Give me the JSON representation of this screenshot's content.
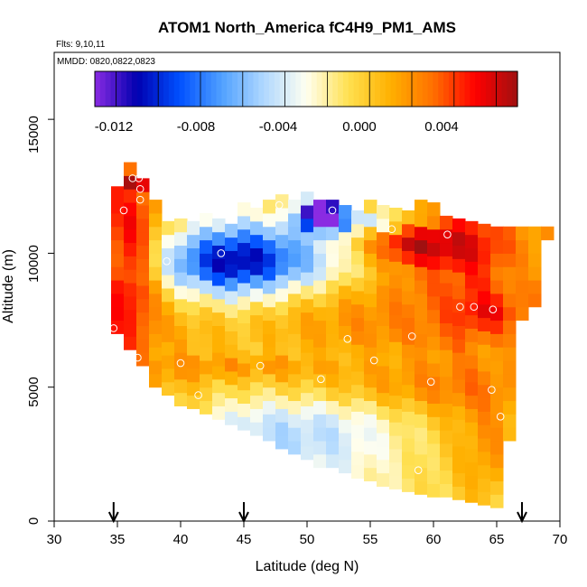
{
  "chart_data": {
    "type": "heatmap",
    "title": "ATOM1 North_America fC4H9_PM1_AMS",
    "flights_label": "Flts: 9,10,11",
    "dates_label": "MMDD: 0820,0822,0823",
    "xlabel": "Latitude (deg N)",
    "ylabel": "Altitude (m)",
    "xlim": [
      30,
      70
    ],
    "ylim": [
      0,
      17500
    ],
    "x_ticks": [
      "30",
      "35",
      "40",
      "45",
      "50",
      "55",
      "60",
      "65",
      "70"
    ],
    "y_ticks": [
      "0",
      "5000",
      "10000",
      "15000"
    ],
    "colorbar": {
      "range": [
        -0.013,
        0.007
      ],
      "tick_labels": [
        "-0.012",
        "-0.008",
        "-0.004",
        "0.000",
        "0.004"
      ],
      "colors": [
        "#8a2be2",
        "#0000b0",
        "#0050ff",
        "#50a0ff",
        "#b0d8ff",
        "#fffff0",
        "#ffe050",
        "#ffb000",
        "#ff7000",
        "#ff0000",
        "#a01010"
      ]
    },
    "flight_markers_lat": [
      34.7,
      45.0,
      67.0
    ],
    "columns": [
      {
        "lat": 35.0,
        "bottom": 7000,
        "top": 12200,
        "bias": 0.003
      },
      {
        "lat": 36.0,
        "bottom": 6400,
        "top": 13000,
        "bias": 0.0022
      },
      {
        "lat": 37.0,
        "bottom": 5800,
        "top": 12400,
        "bias": 0.0016
      },
      {
        "lat": 38.0,
        "bottom": 5000,
        "top": 11600,
        "bias": 0.001
      },
      {
        "lat": 39.0,
        "bottom": 4700,
        "top": 11000,
        "bias": 0.0006
      },
      {
        "lat": 40.0,
        "bottom": 4300,
        "top": 11000,
        "bias": 0.0004
      },
      {
        "lat": 41.0,
        "bottom": 4200,
        "top": 11000,
        "bias": 0.0002
      },
      {
        "lat": 42.0,
        "bottom": 4000,
        "top": 11400,
        "bias": 0.0
      },
      {
        "lat": 43.0,
        "bottom": 3800,
        "top": 11000,
        "bias": -0.0003
      },
      {
        "lat": 44.0,
        "bottom": 3600,
        "top": 11000,
        "bias": -0.0005
      },
      {
        "lat": 45.0,
        "bottom": 3400,
        "top": 11800,
        "bias": -0.0006
      },
      {
        "lat": 46.0,
        "bottom": 3200,
        "top": 11500,
        "bias": -0.0006
      },
      {
        "lat": 47.0,
        "bottom": 3000,
        "top": 12000,
        "bias": -0.0005
      },
      {
        "lat": 48.0,
        "bottom": 2700,
        "top": 11800,
        "bias": -0.0004
      },
      {
        "lat": 49.0,
        "bottom": 2500,
        "top": 12000,
        "bias": -0.0003
      },
      {
        "lat": 50.0,
        "bottom": 2300,
        "top": 12000,
        "bias": -0.0002
      },
      {
        "lat": 51.0,
        "bottom": 2000,
        "top": 12000,
        "bias": -0.0001
      },
      {
        "lat": 52.0,
        "bottom": 2000,
        "top": 11800,
        "bias": 0.0
      },
      {
        "lat": 53.0,
        "bottom": 1800,
        "top": 11600,
        "bias": 0.0002
      },
      {
        "lat": 54.0,
        "bottom": 1600,
        "top": 11600,
        "bias": 0.0004
      },
      {
        "lat": 55.0,
        "bottom": 1500,
        "top": 11600,
        "bias": 0.0006
      },
      {
        "lat": 56.0,
        "bottom": 1300,
        "top": 11600,
        "bias": 0.0008
      },
      {
        "lat": 57.0,
        "bottom": 1200,
        "top": 11600,
        "bias": 0.001
      },
      {
        "lat": 58.0,
        "bottom": 1100,
        "top": 11600,
        "bias": 0.0012
      },
      {
        "lat": 59.0,
        "bottom": 1000,
        "top": 11600,
        "bias": 0.0014
      },
      {
        "lat": 60.0,
        "bottom": 900,
        "top": 11600,
        "bias": 0.0016
      },
      {
        "lat": 61.0,
        "bottom": 900,
        "top": 11000,
        "bias": 0.0018
      },
      {
        "lat": 62.0,
        "bottom": 800,
        "top": 11000,
        "bias": 0.002
      },
      {
        "lat": 63.0,
        "bottom": 700,
        "top": 11000,
        "bias": 0.002
      },
      {
        "lat": 64.0,
        "bottom": 600,
        "top": 11000,
        "bias": 0.0018
      },
      {
        "lat": 65.0,
        "bottom": 500,
        "top": 11000,
        "bias": 0.0015
      },
      {
        "lat": 66.0,
        "bottom": 3000,
        "top": 11000,
        "bias": 0.0012
      },
      {
        "lat": 67.0,
        "bottom": 7500,
        "top": 11000,
        "bias": 0.001
      },
      {
        "lat": 68.0,
        "bottom": 8000,
        "top": 11000,
        "bias": 0.0012
      },
      {
        "lat": 69.0,
        "bottom": 10500,
        "top": 11000,
        "bias": 0.0014
      }
    ],
    "features": [
      {
        "lat": 45.5,
        "alt": 9800,
        "sx": 5,
        "sy": 1000,
        "v": -0.0085
      },
      {
        "lat": 42.5,
        "alt": 9500,
        "sx": 3,
        "sy": 900,
        "v": -0.003
      },
      {
        "lat": 50.5,
        "alt": 11500,
        "sx": 0.8,
        "sy": 400,
        "v": -0.012
      },
      {
        "lat": 52.0,
        "alt": 11500,
        "sx": 0.8,
        "sy": 400,
        "v": -0.01
      },
      {
        "lat": 55.0,
        "alt": 11200,
        "sx": 3,
        "sy": 300,
        "v": -0.0055
      },
      {
        "lat": 58.0,
        "alt": 10400,
        "sx": 2.5,
        "sy": 600,
        "v": 0.0045
      },
      {
        "lat": 63.0,
        "alt": 10200,
        "sx": 3,
        "sy": 1000,
        "v": 0.003
      },
      {
        "lat": 36.5,
        "alt": 10000,
        "sx": 1.2,
        "sy": 2000,
        "v": 0.004
      },
      {
        "lat": 36.5,
        "alt": 12700,
        "sx": 0.5,
        "sy": 200,
        "v": 0.006
      },
      {
        "lat": 52.0,
        "alt": 7600,
        "sx": 6,
        "sy": 900,
        "v": 0.0012
      },
      {
        "lat": 53.0,
        "alt": 5000,
        "sx": 9,
        "sy": 600,
        "v": 0.0018
      },
      {
        "lat": 45.0,
        "alt": 5800,
        "sx": 5,
        "sy": 350,
        "v": 0.0024
      },
      {
        "lat": 50.0,
        "alt": 3500,
        "sx": 7,
        "sy": 1300,
        "v": -0.0038
      },
      {
        "lat": 64.5,
        "alt": 2300,
        "sx": 1.5,
        "sy": 1500,
        "v": 0.0018
      },
      {
        "lat": 64.5,
        "alt": 7800,
        "sx": 2,
        "sy": 500,
        "v": 0.0026
      }
    ],
    "flight_track_points": [
      {
        "lat": 36.2,
        "alt": 12800
      },
      {
        "lat": 36.7,
        "alt": 12800
      },
      {
        "lat": 36.8,
        "alt": 12400
      },
      {
        "lat": 36.8,
        "alt": 12000
      },
      {
        "lat": 35.5,
        "alt": 11600
      },
      {
        "lat": 34.7,
        "alt": 7200
      },
      {
        "lat": 36.6,
        "alt": 6100
      },
      {
        "lat": 38.9,
        "alt": 9700
      },
      {
        "lat": 40.0,
        "alt": 5900
      },
      {
        "lat": 41.4,
        "alt": 4700
      },
      {
        "lat": 43.2,
        "alt": 10000
      },
      {
        "lat": 46.3,
        "alt": 5800
      },
      {
        "lat": 47.8,
        "alt": 11800
      },
      {
        "lat": 51.1,
        "alt": 5300
      },
      {
        "lat": 52.0,
        "alt": 11600
      },
      {
        "lat": 53.2,
        "alt": 6800
      },
      {
        "lat": 55.3,
        "alt": 6000
      },
      {
        "lat": 56.7,
        "alt": 10900
      },
      {
        "lat": 58.3,
        "alt": 6900
      },
      {
        "lat": 59.8,
        "alt": 5200
      },
      {
        "lat": 61.1,
        "alt": 10700
      },
      {
        "lat": 62.1,
        "alt": 8000
      },
      {
        "lat": 63.2,
        "alt": 8000
      },
      {
        "lat": 64.7,
        "alt": 7900
      },
      {
        "lat": 64.6,
        "alt": 4900
      },
      {
        "lat": 65.3,
        "alt": 3900
      },
      {
        "lat": 58.8,
        "alt": 1900
      },
      {
        "lat": 69.9,
        "alt": 10900
      }
    ]
  }
}
